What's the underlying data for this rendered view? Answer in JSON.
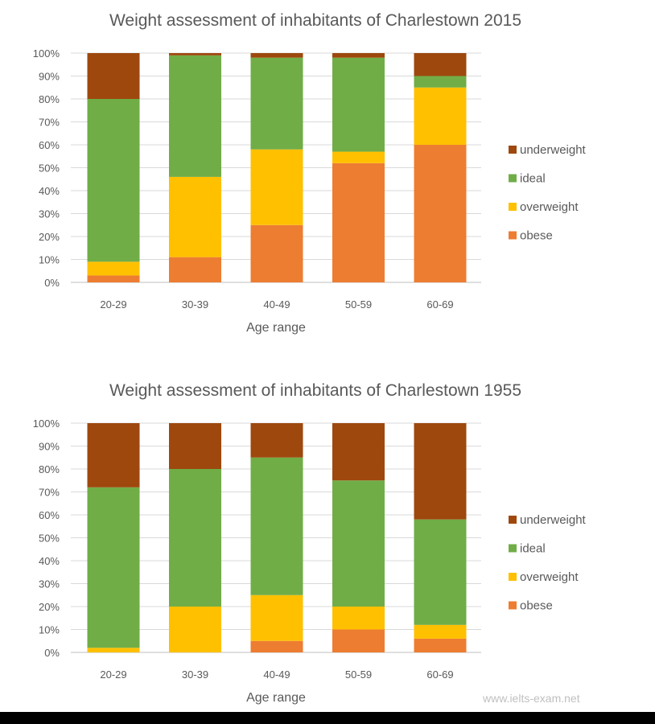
{
  "chart_data": [
    {
      "type": "bar",
      "stacked": true,
      "title": "Weight assessment of inhabitants of Charlestown 2015",
      "xlabel": "Age range",
      "ylabel": "",
      "ylim": [
        0,
        100
      ],
      "yticks": [
        "0%",
        "10%",
        "20%",
        "30%",
        "40%",
        "50%",
        "60%",
        "70%",
        "80%",
        "90%",
        "100%"
      ],
      "categories": [
        "20-29",
        "30-39",
        "40-49",
        "50-59",
        "60-69"
      ],
      "series": [
        {
          "name": "obese",
          "color": "#ed7d31",
          "values": [
            3,
            11,
            25,
            52,
            60
          ]
        },
        {
          "name": "overweight",
          "color": "#ffc000",
          "values": [
            6,
            35,
            33,
            5,
            25
          ]
        },
        {
          "name": "ideal",
          "color": "#70ad47",
          "values": [
            71,
            53,
            40,
            41,
            5
          ]
        },
        {
          "name": "underweight",
          "color": "#9e480e",
          "values": [
            20,
            1,
            2,
            2,
            10
          ]
        }
      ],
      "legend_order": [
        "underweight",
        "ideal",
        "overweight",
        "obese"
      ],
      "legend_position": "right",
      "grid": true
    },
    {
      "type": "bar",
      "stacked": true,
      "title": "Weight assessment of inhabitants of Charlestown 1955",
      "xlabel": "Age range",
      "ylabel": "",
      "ylim": [
        0,
        100
      ],
      "yticks": [
        "0%",
        "10%",
        "20%",
        "30%",
        "40%",
        "50%",
        "60%",
        "70%",
        "80%",
        "90%",
        "100%"
      ],
      "categories": [
        "20-29",
        "30-39",
        "40-49",
        "50-59",
        "60-69"
      ],
      "series": [
        {
          "name": "obese",
          "color": "#ed7d31",
          "values": [
            0,
            0,
            5,
            10,
            6
          ]
        },
        {
          "name": "overweight",
          "color": "#ffc000",
          "values": [
            2,
            20,
            20,
            10,
            6
          ]
        },
        {
          "name": "ideal",
          "color": "#70ad47",
          "values": [
            70,
            60,
            60,
            55,
            46
          ]
        },
        {
          "name": "underweight",
          "color": "#9e480e",
          "values": [
            28,
            20,
            15,
            25,
            42
          ]
        }
      ],
      "legend_order": [
        "underweight",
        "ideal",
        "overweight",
        "obese"
      ],
      "legend_position": "right",
      "grid": true
    }
  ],
  "watermark": "www.ielts-exam.net"
}
